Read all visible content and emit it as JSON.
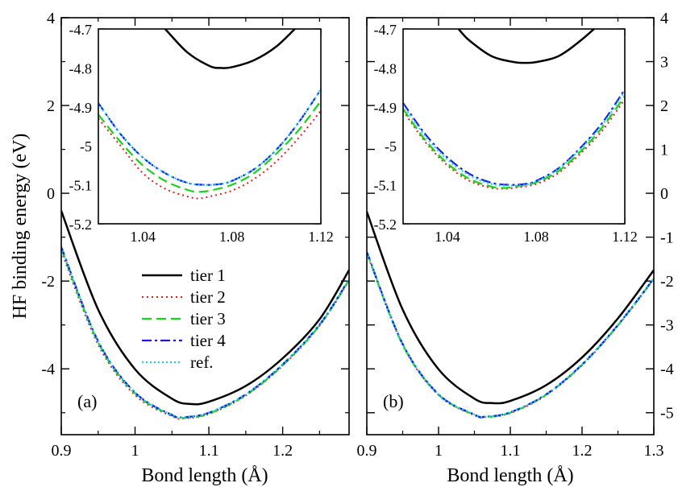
{
  "chart_data": {
    "type": "line",
    "ylabel": "HF binding energy (eV)",
    "legend": {
      "placement": "lower-left of panel (a)",
      "entries": [
        {
          "label": "tier 1",
          "color": "#000000",
          "dash": "solid"
        },
        {
          "label": "tier 2",
          "color": "#e0201b",
          "dash": "dotted"
        },
        {
          "label": "tier 3",
          "color": "#19d219",
          "dash": "dashed"
        },
        {
          "label": "tier 4",
          "color": "#1a1ae6",
          "dash": "dash-dot"
        },
        {
          "label": "ref.",
          "color": "#1ad2e6",
          "dash": "dotted"
        }
      ]
    },
    "panels": [
      {
        "tag": "(a)",
        "xlabel": "Bond length (Å)",
        "xlim": [
          0.9,
          1.29
        ],
        "ylim": [
          -5.5,
          4
        ],
        "y_axis_side": "left",
        "xticks": [
          0.9,
          1,
          1.1,
          1.2
        ],
        "xtick_labels": [
          "0.9",
          "1",
          "1.1",
          "1.2"
        ],
        "yticks": [
          -4,
          -2,
          0,
          2,
          4
        ],
        "ytick_labels": [
          "-4",
          "-2",
          "0",
          "2",
          "4"
        ],
        "series": [
          {
            "name": "tier 1",
            "x": [
              0.9,
              0.95,
              1.0,
              1.05,
              1.075,
              1.1,
              1.15,
              1.2,
              1.25,
              1.29
            ],
            "y": [
              -0.4,
              -2.65,
              -4.01,
              -4.68,
              -4.8,
              -4.75,
              -4.39,
              -3.76,
              -2.87,
              -1.75
            ]
          },
          {
            "name": "tier 2",
            "x": [
              0.9,
              0.95,
              1.0,
              1.05,
              1.065,
              1.1,
              1.15,
              1.2,
              1.25,
              1.29
            ],
            "y": [
              -1.32,
              -3.45,
              -4.6,
              -5.08,
              -5.13,
              -5.03,
              -4.61,
              -3.93,
              -3.02,
              -1.99
            ]
          },
          {
            "name": "tier 3",
            "x": [
              0.9,
              0.95,
              1.0,
              1.05,
              1.065,
              1.1,
              1.15,
              1.2,
              1.25,
              1.29
            ],
            "y": [
              -1.26,
              -3.4,
              -4.56,
              -5.06,
              -5.12,
              -5.02,
              -4.6,
              -3.92,
              -3.01,
              -1.98
            ]
          },
          {
            "name": "tier 4",
            "x": [
              0.9,
              0.95,
              1.0,
              1.05,
              1.065,
              1.1,
              1.15,
              1.2,
              1.25,
              1.29
            ],
            "y": [
              -1.22,
              -3.37,
              -4.54,
              -5.05,
              -5.1,
              -5.0,
              -4.58,
              -3.9,
              -2.99,
              -1.96
            ]
          },
          {
            "name": "ref.",
            "x": [
              0.9,
              0.95,
              1.0,
              1.05,
              1.065,
              1.1,
              1.15,
              1.2,
              1.25,
              1.29
            ],
            "y": [
              -1.22,
              -3.37,
              -4.54,
              -5.05,
              -5.1,
              -5.0,
              -4.58,
              -3.9,
              -2.99,
              -1.96
            ]
          }
        ],
        "inset": {
          "xlim": [
            1.02,
            1.12
          ],
          "ylim": [
            -5.2,
            -4.7
          ],
          "xticks": [
            1.04,
            1.08,
            1.12
          ],
          "xtick_labels": [
            "1.04",
            "1.08",
            "1.12"
          ],
          "yticks": [
            -5.2,
            -5.1,
            -5,
            -4.9,
            -4.8,
            -4.7
          ],
          "ytick_labels": [
            "-5.2",
            "-5.1",
            "-5",
            "-4.9",
            "-4.8",
            "-4.7"
          ],
          "series": [
            {
              "name": "tier 1",
              "x": [
                1.04,
                1.05,
                1.06,
                1.07,
                1.075,
                1.08,
                1.09,
                1.1,
                1.11
              ],
              "y": [
                -4.64,
                -4.7,
                -4.76,
                -4.795,
                -4.8,
                -4.798,
                -4.78,
                -4.745,
                -4.69
              ]
            },
            {
              "name": "tier 2",
              "x": [
                1.02,
                1.03,
                1.04,
                1.05,
                1.06,
                1.065,
                1.07,
                1.08,
                1.09,
                1.1,
                1.11,
                1.12
              ],
              "y": [
                -4.93,
                -5.0,
                -5.07,
                -5.11,
                -5.13,
                -5.135,
                -5.13,
                -5.115,
                -5.085,
                -5.04,
                -4.98,
                -4.91
              ]
            },
            {
              "name": "tier 3",
              "x": [
                1.02,
                1.03,
                1.04,
                1.05,
                1.06,
                1.065,
                1.07,
                1.08,
                1.09,
                1.1,
                1.11,
                1.12
              ],
              "y": [
                -4.92,
                -4.99,
                -5.05,
                -5.09,
                -5.113,
                -5.118,
                -5.115,
                -5.1,
                -5.07,
                -5.02,
                -4.96,
                -4.885
              ]
            },
            {
              "name": "tier 4",
              "x": [
                1.02,
                1.03,
                1.04,
                1.05,
                1.06,
                1.068,
                1.075,
                1.08,
                1.09,
                1.1,
                1.11,
                1.12
              ],
              "y": [
                -4.89,
                -4.97,
                -5.03,
                -5.07,
                -5.095,
                -5.1,
                -5.098,
                -5.09,
                -5.06,
                -5.01,
                -4.94,
                -4.855
              ]
            },
            {
              "name": "ref.",
              "x": [
                1.02,
                1.03,
                1.04,
                1.05,
                1.06,
                1.068,
                1.075,
                1.08,
                1.09,
                1.1,
                1.11,
                1.12
              ],
              "y": [
                -4.89,
                -4.97,
                -5.03,
                -5.07,
                -5.095,
                -5.1,
                -5.098,
                -5.09,
                -5.06,
                -5.01,
                -4.94,
                -4.855
              ]
            }
          ]
        }
      },
      {
        "tag": "(b)",
        "xlabel": "Bond length (Å)",
        "xlim": [
          0.9,
          1.3
        ],
        "ylim": [
          -5.5,
          4
        ],
        "y_axis_side": "right",
        "xticks": [
          0.9,
          1,
          1.1,
          1.2,
          1.3
        ],
        "xtick_labels": [
          "0.9",
          "1",
          "1.1",
          "1.2",
          "1.3"
        ],
        "yticks": [
          -5,
          -4,
          -3,
          -2,
          -1,
          0,
          1,
          2,
          3,
          4
        ],
        "ytick_labels": [
          "-5",
          "-4",
          "-3",
          "-2",
          "-1",
          "0",
          "1",
          "2",
          "3",
          "4"
        ],
        "series": [
          {
            "name": "tier 1",
            "x": [
              0.9,
              0.95,
              1.0,
              1.05,
              1.075,
              1.1,
              1.15,
              1.2,
              1.25,
              1.3
            ],
            "y": [
              -0.42,
              -2.65,
              -4.01,
              -4.68,
              -4.78,
              -4.73,
              -4.37,
              -3.74,
              -2.85,
              -1.75
            ]
          },
          {
            "name": "tier 2",
            "x": [
              0.9,
              0.95,
              1.0,
              1.05,
              1.065,
              1.1,
              1.15,
              1.2,
              1.25,
              1.3
            ],
            "y": [
              -1.37,
              -3.46,
              -4.6,
              -5.06,
              -5.1,
              -5.01,
              -4.6,
              -3.92,
              -3.02,
              -1.96
            ]
          },
          {
            "name": "tier 3",
            "x": [
              0.9,
              0.95,
              1.0,
              1.05,
              1.065,
              1.1,
              1.15,
              1.2,
              1.25,
              1.3
            ],
            "y": [
              -1.35,
              -3.45,
              -4.59,
              -5.05,
              -5.1,
              -5.0,
              -4.59,
              -3.91,
              -3.01,
              -1.95
            ]
          },
          {
            "name": "tier 4",
            "x": [
              0.9,
              0.95,
              1.0,
              1.05,
              1.065,
              1.1,
              1.15,
              1.2,
              1.25,
              1.3
            ],
            "y": [
              -1.33,
              -3.43,
              -4.58,
              -5.04,
              -5.09,
              -4.99,
              -4.58,
              -3.9,
              -3.0,
              -1.94
            ]
          },
          {
            "name": "ref.",
            "x": [
              0.9,
              0.95,
              1.0,
              1.05,
              1.065,
              1.1,
              1.15,
              1.2,
              1.25,
              1.3
            ],
            "y": [
              -1.33,
              -3.43,
              -4.58,
              -5.04,
              -5.09,
              -4.99,
              -4.58,
              -3.9,
              -3.0,
              -1.94
            ]
          }
        ],
        "inset": {
          "xlim": [
            1.02,
            1.12
          ],
          "ylim": [
            -5.2,
            -4.7
          ],
          "xticks": [
            1.04,
            1.08,
            1.12
          ],
          "xtick_labels": [
            "1.04",
            "1.08",
            "1.12"
          ],
          "yticks": [
            -5.2,
            -5.1,
            -5,
            -4.9,
            -4.8,
            -4.7
          ],
          "ytick_labels": [
            "-5.2",
            "-5.1",
            "-5",
            "-4.9",
            "-4.8",
            "-4.7"
          ],
          "series": [
            {
              "name": "tier 1",
              "x": [
                1.045,
                1.05,
                1.06,
                1.07,
                1.075,
                1.08,
                1.09,
                1.1,
                1.11
              ],
              "y": [
                -4.7,
                -4.73,
                -4.77,
                -4.785,
                -4.787,
                -4.785,
                -4.77,
                -4.73,
                -4.68
              ]
            },
            {
              "name": "tier 2",
              "x": [
                1.02,
                1.03,
                1.04,
                1.05,
                1.06,
                1.066,
                1.07,
                1.08,
                1.09,
                1.1,
                1.11,
                1.12
              ],
              "y": [
                -4.91,
                -4.99,
                -5.05,
                -5.09,
                -5.108,
                -5.11,
                -5.108,
                -5.098,
                -5.07,
                -5.02,
                -4.96,
                -4.88
              ]
            },
            {
              "name": "tier 3",
              "x": [
                1.02,
                1.03,
                1.04,
                1.05,
                1.06,
                1.066,
                1.07,
                1.08,
                1.09,
                1.1,
                1.11,
                1.12
              ],
              "y": [
                -4.905,
                -4.985,
                -5.045,
                -5.085,
                -5.105,
                -5.108,
                -5.105,
                -5.094,
                -5.065,
                -5.015,
                -4.952,
                -4.872
              ]
            },
            {
              "name": "tier 4",
              "x": [
                1.02,
                1.03,
                1.04,
                1.05,
                1.06,
                1.068,
                1.075,
                1.08,
                1.09,
                1.1,
                1.11,
                1.12
              ],
              "y": [
                -4.89,
                -4.97,
                -5.03,
                -5.072,
                -5.095,
                -5.1,
                -5.098,
                -5.09,
                -5.058,
                -5.005,
                -4.94,
                -4.855
              ]
            },
            {
              "name": "ref.",
              "x": [
                1.02,
                1.03,
                1.04,
                1.05,
                1.06,
                1.068,
                1.075,
                1.08,
                1.09,
                1.1,
                1.11,
                1.12
              ],
              "y": [
                -4.895,
                -4.975,
                -5.035,
                -5.076,
                -5.098,
                -5.102,
                -5.1,
                -5.092,
                -5.06,
                -5.008,
                -4.945,
                -4.86
              ]
            }
          ]
        }
      }
    ]
  }
}
